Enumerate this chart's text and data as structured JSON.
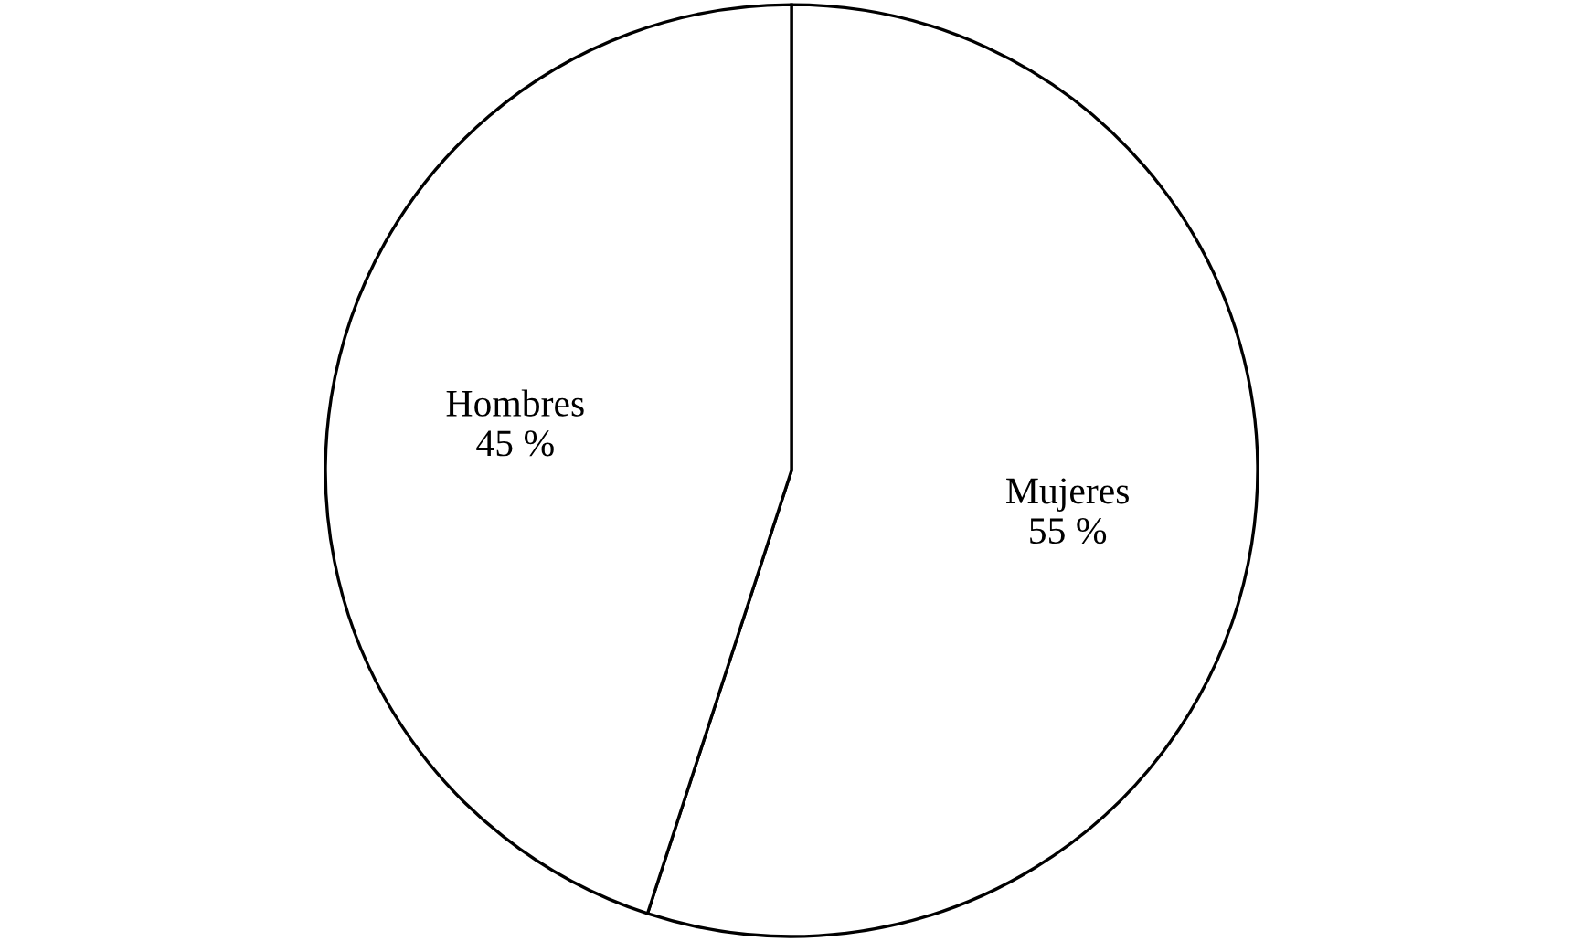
{
  "chart_data": {
    "type": "pie",
    "categories": [
      "Mujeres",
      "Hombres"
    ],
    "values": [
      55,
      45
    ],
    "colors": [
      "#ffffff",
      "#ffffff"
    ],
    "value_labels": [
      "55 %",
      "45 %"
    ]
  }
}
